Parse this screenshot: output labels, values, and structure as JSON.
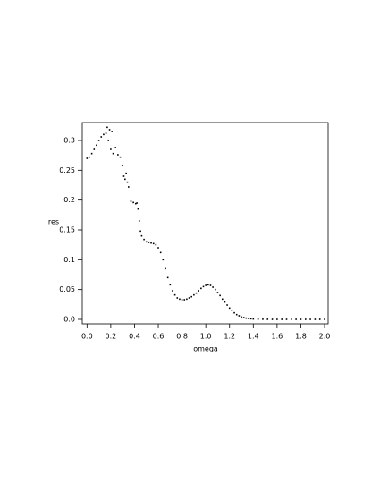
{
  "chart_data": {
    "type": "scatter",
    "xlabel": "omega",
    "ylabel": "res",
    "color": "#000000",
    "x": [
      0.0,
      0.02,
      0.04,
      0.06,
      0.08,
      0.1,
      0.12,
      0.14,
      0.16,
      0.17,
      0.18,
      0.19,
      0.2,
      0.21,
      0.22,
      0.24,
      0.26,
      0.28,
      0.3,
      0.31,
      0.32,
      0.33,
      0.34,
      0.35,
      0.37,
      0.39,
      0.41,
      0.42,
      0.43,
      0.44,
      0.45,
      0.46,
      0.48,
      0.5,
      0.52,
      0.54,
      0.56,
      0.58,
      0.6,
      0.62,
      0.64,
      0.66,
      0.68,
      0.7,
      0.72,
      0.74,
      0.76,
      0.78,
      0.8,
      0.82,
      0.84,
      0.86,
      0.88,
      0.9,
      0.92,
      0.94,
      0.96,
      0.98,
      1.0,
      1.02,
      1.04,
      1.06,
      1.08,
      1.1,
      1.12,
      1.14,
      1.16,
      1.18,
      1.2,
      1.22,
      1.24,
      1.26,
      1.28,
      1.3,
      1.32,
      1.34,
      1.36,
      1.38,
      1.4,
      1.44,
      1.48,
      1.52,
      1.56,
      1.6,
      1.64,
      1.68,
      1.72,
      1.76,
      1.8,
      1.84,
      1.88,
      1.92,
      1.96,
      2.0
    ],
    "values": [
      0.27,
      0.272,
      0.278,
      0.285,
      0.292,
      0.3,
      0.306,
      0.31,
      0.312,
      0.322,
      0.3,
      0.318,
      0.285,
      0.315,
      0.278,
      0.288,
      0.276,
      0.272,
      0.258,
      0.24,
      0.235,
      0.245,
      0.23,
      0.222,
      0.198,
      0.196,
      0.194,
      0.195,
      0.185,
      0.165,
      0.148,
      0.14,
      0.134,
      0.13,
      0.129,
      0.128,
      0.127,
      0.125,
      0.12,
      0.112,
      0.1,
      0.085,
      0.07,
      0.058,
      0.048,
      0.041,
      0.036,
      0.034,
      0.033,
      0.033,
      0.034,
      0.036,
      0.038,
      0.041,
      0.044,
      0.048,
      0.052,
      0.055,
      0.057,
      0.058,
      0.057,
      0.054,
      0.05,
      0.045,
      0.04,
      0.034,
      0.029,
      0.024,
      0.019,
      0.015,
      0.011,
      0.008,
      0.006,
      0.004,
      0.003,
      0.002,
      0.0015,
      0.001,
      0.0006,
      0.0003,
      0.0002,
      0.0001,
      0,
      0,
      0,
      0,
      0,
      0,
      0,
      0,
      0,
      0,
      0,
      0
    ],
    "xlim": [
      -0.04,
      2.03
    ],
    "ylim": [
      -0.0075,
      0.33
    ],
    "xticks": [
      {
        "value": 0,
        "label": "0.0"
      },
      {
        "value": 0.2,
        "label": "0.2"
      },
      {
        "value": 0.4,
        "label": "0.4"
      },
      {
        "value": 0.6,
        "label": "0.6"
      },
      {
        "value": 0.8,
        "label": "0.8"
      },
      {
        "value": 1,
        "label": "1.0"
      },
      {
        "value": 1.2,
        "label": "1.2"
      },
      {
        "value": 1.4,
        "label": "1.4"
      },
      {
        "value": 1.6,
        "label": "1.6"
      },
      {
        "value": 1.8,
        "label": "1.8"
      },
      {
        "value": 2,
        "label": "2.0"
      }
    ],
    "yticks": [
      {
        "value": 0,
        "label": "0.0"
      },
      0.05,
      0.1,
      0.15,
      0.2,
      0.25,
      0.3
    ]
  }
}
